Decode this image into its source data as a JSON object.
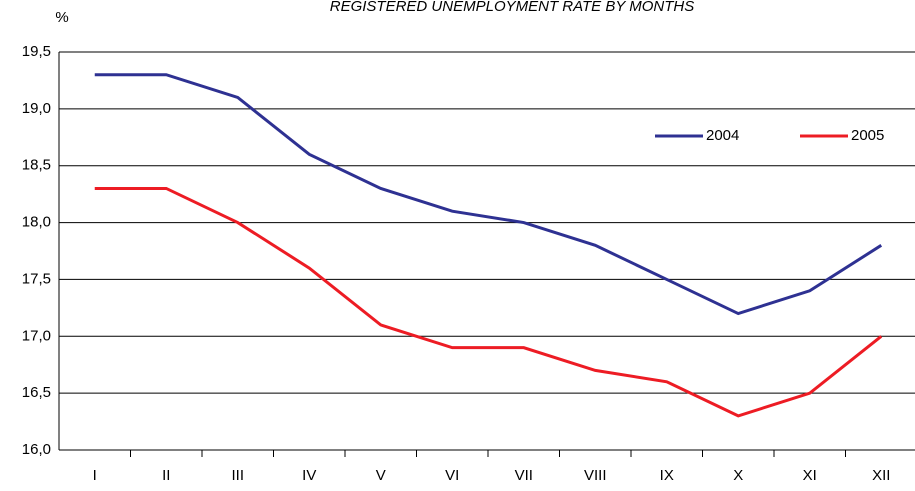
{
  "chart_data": {
    "type": "line",
    "title": "REGISTERED UNEMPLOYMENT RATE BY MONTHS",
    "y_label": "%",
    "categories": [
      "I",
      "II",
      "III",
      "IV",
      "V",
      "VI",
      "VII",
      "VIII",
      "IX",
      "X",
      "XI",
      "XII"
    ],
    "series": [
      {
        "name": "2004",
        "color": "#2e3192",
        "values": [
          19.3,
          19.3,
          19.1,
          18.6,
          18.3,
          18.1,
          18.0,
          17.8,
          17.5,
          17.2,
          17.4,
          17.8
        ]
      },
      {
        "name": "2005",
        "color": "#ed1c24",
        "values": [
          18.3,
          18.3,
          18.0,
          17.6,
          17.1,
          16.9,
          16.9,
          16.7,
          16.6,
          16.3,
          16.5,
          17.0
        ]
      }
    ],
    "ylim": [
      16,
      19.5
    ],
    "yticks": [
      {
        "value": 16,
        "label": "16,0"
      },
      {
        "value": 16.5,
        "label": "16,5"
      },
      {
        "value": 17,
        "label": "17,0"
      },
      {
        "value": 17.5,
        "label": "17,5"
      },
      {
        "value": 18,
        "label": "18,0"
      },
      {
        "value": 18.5,
        "label": "18,5"
      },
      {
        "value": 19,
        "label": "19,0"
      },
      {
        "value": 19.5,
        "label": "19,5"
      }
    ],
    "grid": true,
    "legend": "upper right"
  }
}
